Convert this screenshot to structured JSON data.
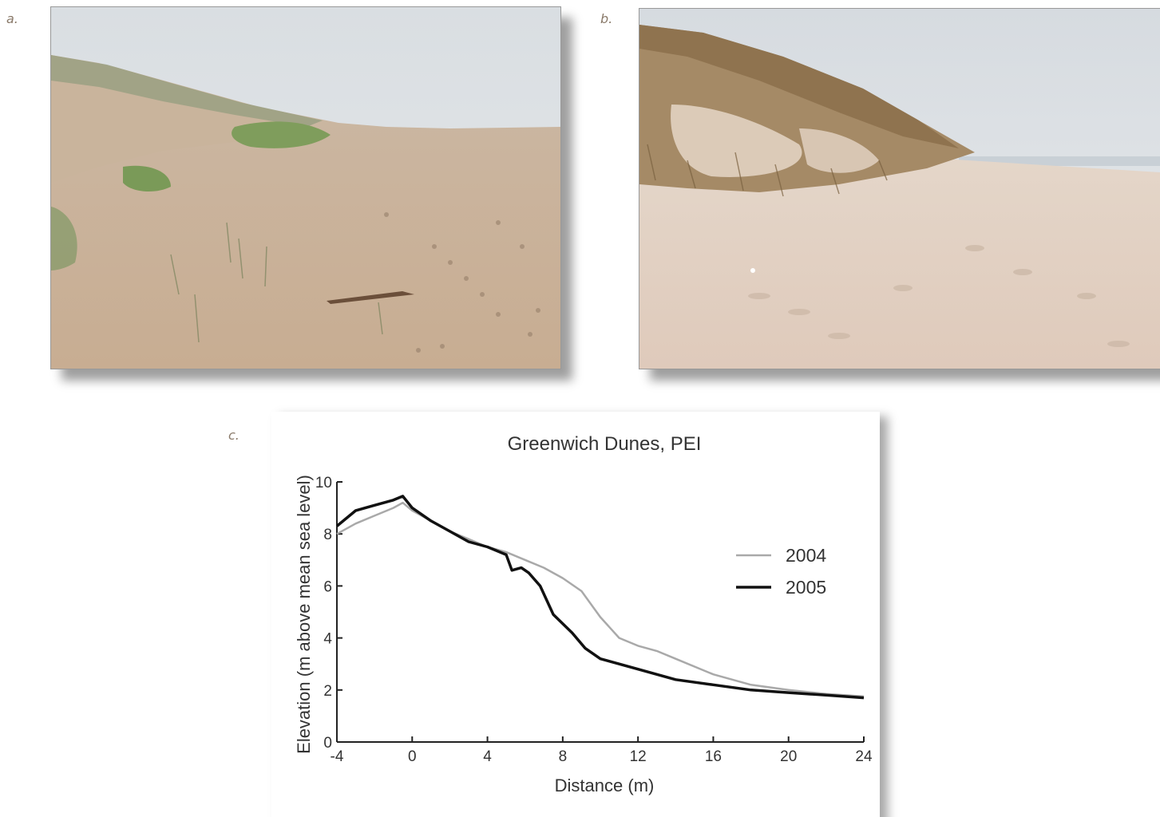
{
  "panels": {
    "a_label": "a.",
    "b_label": "b.",
    "c_label": "c."
  },
  "photos": {
    "a": {
      "subject": "beach-dune-photo-gentle-slope",
      "colors": {
        "sky": "#dfe3e6",
        "sand": "#cfb9a1",
        "grass": "#7d9a5b"
      }
    },
    "b": {
      "subject": "beach-dune-photo-eroded-scarp",
      "colors": {
        "sky": "#e4e7ea",
        "sand": "#e2d2c4",
        "grass": "#9c7c52"
      }
    }
  },
  "chart_data": {
    "type": "line",
    "title": "Greenwich Dunes, PEI",
    "xlabel": "Distance (m)",
    "ylabel": "Elevation (m above mean sea level)",
    "xlim": [
      -4,
      24
    ],
    "ylim": [
      0,
      10
    ],
    "xticks": [
      -4,
      0,
      4,
      8,
      12,
      16,
      20,
      24
    ],
    "yticks": [
      0,
      2,
      4,
      6,
      8,
      10
    ],
    "legend_position": "right",
    "grid": false,
    "series": [
      {
        "name": "2004",
        "color": "#a9a9a9",
        "x": [
          -4,
          -3,
          -2,
          -1,
          -0.5,
          0,
          1,
          2,
          3,
          4,
          5,
          6,
          7,
          8,
          9,
          10,
          11,
          12,
          13,
          14,
          16,
          18,
          20,
          22,
          24
        ],
        "y": [
          8.0,
          8.4,
          8.7,
          9.0,
          9.2,
          8.9,
          8.5,
          8.1,
          7.8,
          7.5,
          7.3,
          7.0,
          6.7,
          6.3,
          5.8,
          4.8,
          4.0,
          3.7,
          3.5,
          3.2,
          2.6,
          2.2,
          2.0,
          1.85,
          1.75
        ]
      },
      {
        "name": "2005",
        "color": "#111111",
        "x": [
          -4,
          -3,
          -2,
          -1,
          -0.5,
          0,
          1,
          2,
          3,
          4,
          5,
          5.3,
          5.8,
          6.2,
          6.8,
          7.5,
          8.5,
          9.2,
          10,
          11,
          12,
          14,
          16,
          18,
          20,
          22,
          24
        ],
        "y": [
          8.3,
          8.9,
          9.1,
          9.3,
          9.45,
          9.0,
          8.5,
          8.1,
          7.7,
          7.5,
          7.2,
          6.6,
          6.7,
          6.5,
          6.0,
          4.9,
          4.2,
          3.6,
          3.2,
          3.0,
          2.8,
          2.4,
          2.2,
          2.0,
          1.9,
          1.8,
          1.7
        ]
      }
    ]
  }
}
